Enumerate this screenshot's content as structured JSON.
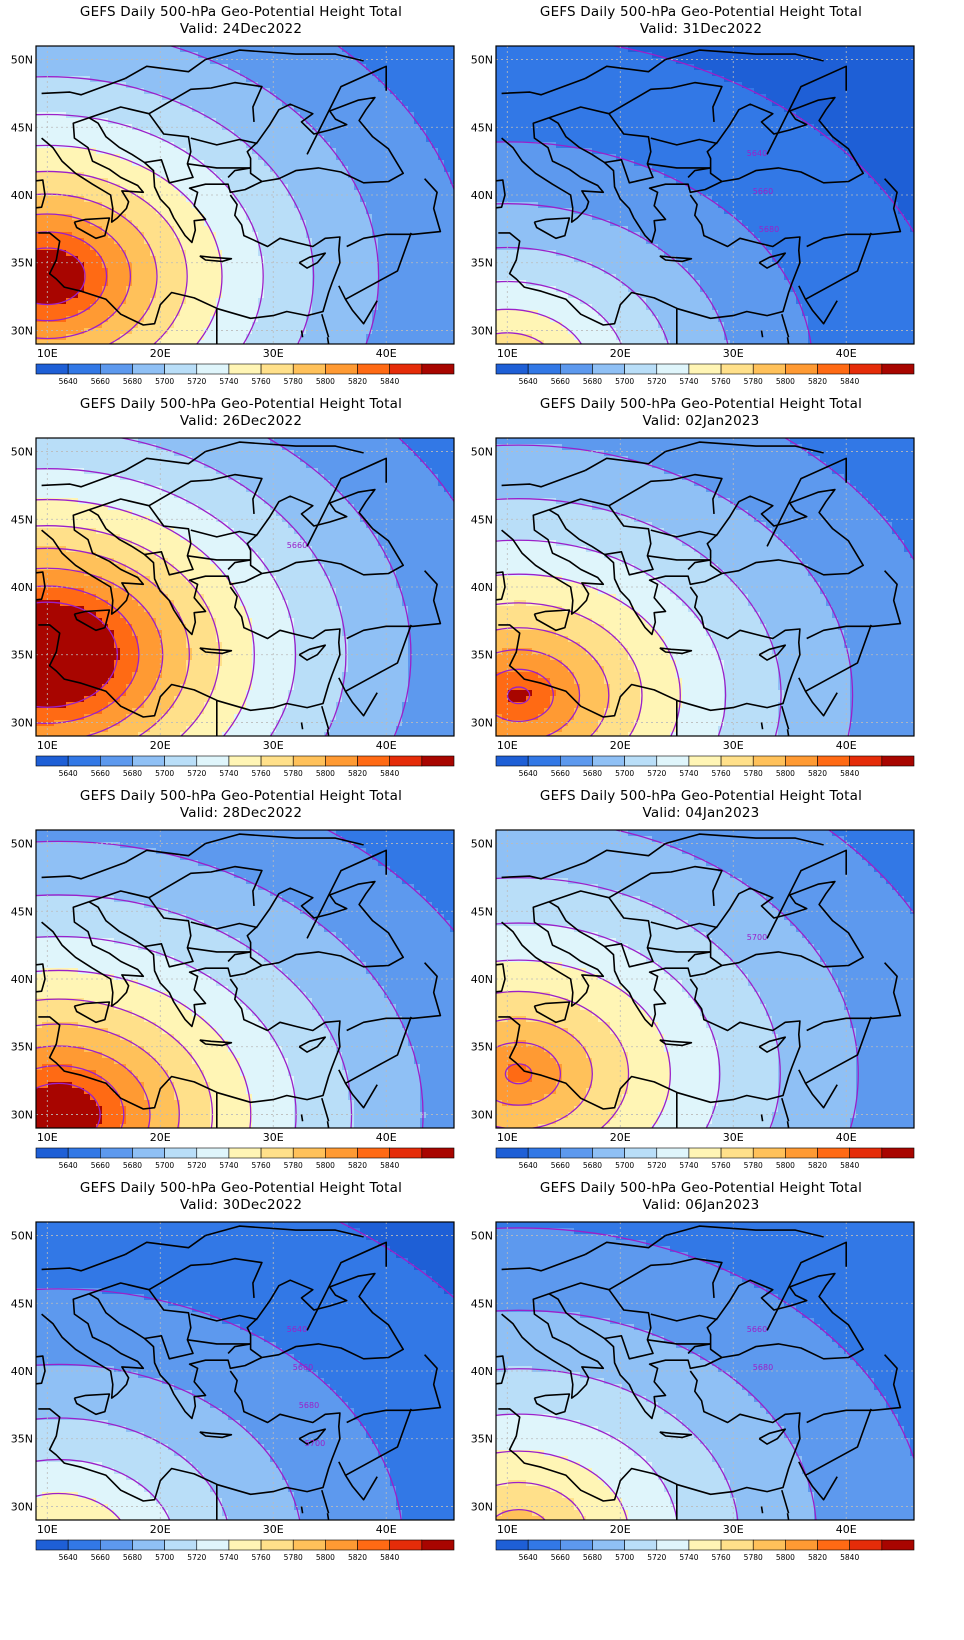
{
  "panels": [
    {
      "title": "GEFS Daily 500-hPa Geo-Potential Height Total",
      "valid": "Valid: 24Dec2022",
      "center": [
        10,
        34
      ],
      "scale": 0.55,
      "amp": 260,
      "decay": 20,
      "offset": 5640,
      "labels": []
    },
    {
      "title": "GEFS Daily 500-hPa Geo-Potential Height Total",
      "valid": "Valid: 31Dec2022",
      "center": [
        10,
        27
      ],
      "scale": 0.3,
      "amp": 180,
      "decay": 18,
      "offset": 5640,
      "labels": [
        "5640",
        "5660",
        "5680"
      ]
    },
    {
      "title": "GEFS Daily 500-hPa Geo-Potential Height Total",
      "valid": "Valid: 26Dec2022",
      "center": [
        10,
        35
      ],
      "scale": 0.45,
      "amp": 300,
      "decay": 20,
      "offset": 5640,
      "labels": [
        "5660"
      ]
    },
    {
      "title": "GEFS Daily 500-hPa Geo-Potential Height Total",
      "valid": "Valid: 02Jan2023",
      "center": [
        11,
        32
      ],
      "scale": 0.4,
      "amp": 230,
      "decay": 22,
      "offset": 5640,
      "labels": []
    },
    {
      "title": "GEFS Daily 500-hPa Geo-Potential Height Total",
      "valid": "Valid: 28Dec2022",
      "center": [
        11,
        30
      ],
      "scale": 0.35,
      "amp": 260,
      "decay": 22,
      "offset": 5640,
      "labels": []
    },
    {
      "title": "GEFS Daily 500-hPa Geo-Potential Height Total",
      "valid": "Valid: 04Jan2023",
      "center": [
        11,
        33
      ],
      "scale": 0.38,
      "amp": 210,
      "decay": 24,
      "offset": 5640,
      "labels": [
        "5700"
      ]
    },
    {
      "title": "GEFS Daily 500-hPa Geo-Potential Height Total",
      "valid": "Valid: 30Dec2022",
      "center": [
        11,
        27
      ],
      "scale": 0.25,
      "amp": 160,
      "decay": 22,
      "offset": 5640,
      "labels": [
        "5640",
        "5660",
        "5680",
        "5700"
      ]
    },
    {
      "title": "GEFS Daily 500-hPa Geo-Potential Height Total",
      "valid": "Valid: 06Jan2023",
      "center": [
        11,
        28
      ],
      "scale": 0.4,
      "amp": 180,
      "decay": 24,
      "offset": 5640,
      "labels": [
        "5660",
        "5680"
      ]
    }
  ],
  "axes": {
    "lon_range": [
      9,
      46
    ],
    "lat_range": [
      29,
      51
    ],
    "lon_ticks": [
      "10E",
      "20E",
      "30E",
      "40E"
    ],
    "lat_ticks": [
      "50N",
      "45N",
      "40N",
      "35N",
      "30N"
    ]
  },
  "colorbar": {
    "labels": [
      "5640",
      "5660",
      "5680",
      "5700",
      "5720",
      "5740",
      "5760",
      "5780",
      "5800",
      "5820",
      "5840"
    ],
    "colors": [
      "#1e5fd6",
      "#3278e6",
      "#5d99ee",
      "#8fc0f5",
      "#b9def8",
      "#dff5fb",
      "#fff5b5",
      "#ffe08a",
      "#ffc15a",
      "#ff9a33",
      "#ff6a14",
      "#e52c09",
      "#a80500"
    ]
  },
  "contour_color": "#9b20c9"
}
